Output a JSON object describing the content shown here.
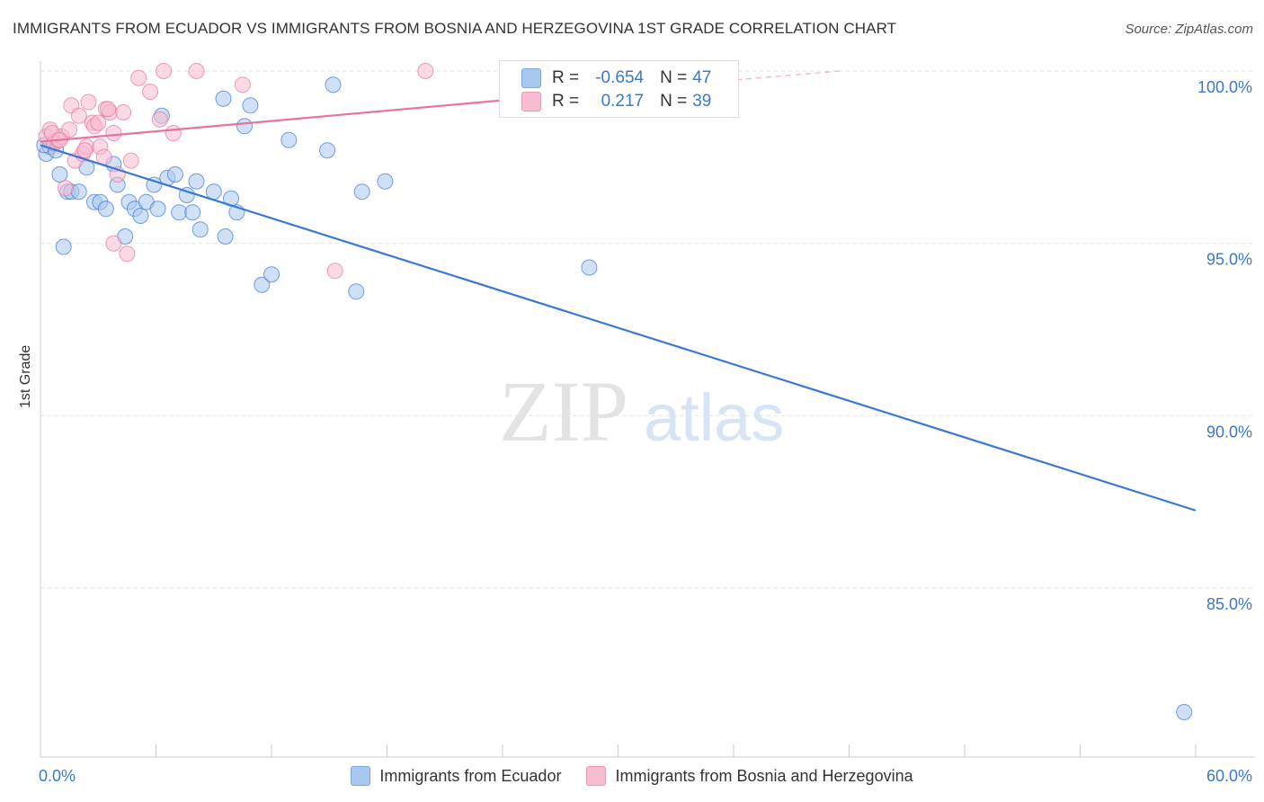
{
  "title": "IMMIGRANTS FROM ECUADOR VS IMMIGRANTS FROM BOSNIA AND HERZEGOVINA 1ST GRADE CORRELATION CHART",
  "source": "Source: ZipAtlas.com",
  "watermark": {
    "zip": "ZIP",
    "atlas": "atlas"
  },
  "stats_box": {
    "rows": [
      {
        "r_label": "R =",
        "r_value": "-0.654",
        "n_label": "N =",
        "n_value": "47",
        "color": "#a9c8f0"
      },
      {
        "r_label": "R =",
        "r_value": "0.217",
        "n_label": "N =",
        "n_value": "39",
        "color": "#f7bcd0"
      }
    ]
  },
  "chart_data": {
    "type": "scatter",
    "title": "IMMIGRANTS FROM ECUADOR VS IMMIGRANTS FROM BOSNIA AND HERZEGOVINA 1ST GRADE CORRELATION CHART",
    "xlabel": "",
    "ylabel": "1st Grade",
    "xlim": [
      0,
      60
    ],
    "ylim": [
      80.5,
      100.7
    ],
    "x_tick_labels": [
      "0.0%",
      "60.0%"
    ],
    "y_ticks": [
      85,
      90,
      95,
      100
    ],
    "y_tick_labels": [
      "85.0%",
      "90.0%",
      "95.0%",
      "100.0%"
    ],
    "grid": true,
    "legend_position": "bottom",
    "series": [
      {
        "name": "Immigrants from Ecuador",
        "color": "#3a78d6",
        "fill": "#a9c8f0",
        "trend": {
          "x": [
            0,
            60
          ],
          "y": [
            97.85,
            87.25
          ]
        },
        "points": [
          [
            0.3,
            97.6
          ],
          [
            0.5,
            97.8
          ],
          [
            1.0,
            97.0
          ],
          [
            1.2,
            94.9
          ],
          [
            1.4,
            96.5
          ],
          [
            1.6,
            96.5
          ],
          [
            2.0,
            96.5
          ],
          [
            2.4,
            97.2
          ],
          [
            2.8,
            96.2
          ],
          [
            3.1,
            96.2
          ],
          [
            3.4,
            96.0
          ],
          [
            3.8,
            97.3
          ],
          [
            4.0,
            96.7
          ],
          [
            4.4,
            95.2
          ],
          [
            4.6,
            96.2
          ],
          [
            4.9,
            96.0
          ],
          [
            5.2,
            95.8
          ],
          [
            5.5,
            96.2
          ],
          [
            5.9,
            96.7
          ],
          [
            6.1,
            96.0
          ],
          [
            6.3,
            98.7
          ],
          [
            6.6,
            96.9
          ],
          [
            7.0,
            97.0
          ],
          [
            7.2,
            95.9
          ],
          [
            7.6,
            96.4
          ],
          [
            7.9,
            95.9
          ],
          [
            8.1,
            96.8
          ],
          [
            8.3,
            95.4
          ],
          [
            9.0,
            96.5
          ],
          [
            9.5,
            99.2
          ],
          [
            9.6,
            95.2
          ],
          [
            9.9,
            96.3
          ],
          [
            10.2,
            95.9
          ],
          [
            10.6,
            98.4
          ],
          [
            10.9,
            99.0
          ],
          [
            11.5,
            93.8
          ],
          [
            12.9,
            98.0
          ],
          [
            12.0,
            94.1
          ],
          [
            14.9,
            97.7
          ],
          [
            15.2,
            99.6
          ],
          [
            16.4,
            93.6
          ],
          [
            16.7,
            96.5
          ],
          [
            17.9,
            96.8
          ],
          [
            28.5,
            94.3
          ],
          [
            59.4,
            81.4
          ],
          [
            0.2,
            97.85
          ],
          [
            0.8,
            97.7
          ]
        ]
      },
      {
        "name": "Immigrants from Bosnia and Herzegovina",
        "color": "#e8739a",
        "fill": "#f7bcd0",
        "trend": {
          "x": [
            0,
            30
          ],
          "y": [
            97.95,
            99.45
          ]
        },
        "trend_extension": {
          "x": [
            30,
            41.5
          ],
          "y": [
            99.45,
            100.0
          ]
        },
        "points": [
          [
            0.3,
            98.1
          ],
          [
            0.5,
            98.3
          ],
          [
            0.7,
            97.9
          ],
          [
            0.9,
            98.0
          ],
          [
            1.1,
            98.1
          ],
          [
            1.3,
            96.6
          ],
          [
            1.5,
            98.3
          ],
          [
            1.6,
            99.0
          ],
          [
            1.8,
            97.4
          ],
          [
            2.0,
            98.7
          ],
          [
            2.2,
            97.6
          ],
          [
            2.4,
            97.8
          ],
          [
            2.5,
            99.1
          ],
          [
            2.7,
            98.5
          ],
          [
            2.8,
            98.4
          ],
          [
            3.0,
            98.5
          ],
          [
            3.1,
            97.8
          ],
          [
            3.3,
            97.5
          ],
          [
            3.4,
            98.9
          ],
          [
            3.6,
            98.8
          ],
          [
            3.8,
            95.0
          ],
          [
            3.8,
            98.2
          ],
          [
            4.0,
            97.0
          ],
          [
            4.3,
            98.8
          ],
          [
            4.5,
            94.7
          ],
          [
            4.7,
            97.4
          ],
          [
            5.1,
            99.8
          ],
          [
            5.7,
            99.4
          ],
          [
            6.2,
            98.6
          ],
          [
            6.4,
            100.0
          ],
          [
            6.9,
            98.2
          ],
          [
            8.1,
            100.0
          ],
          [
            10.5,
            99.6
          ],
          [
            15.3,
            94.2
          ],
          [
            20.0,
            100.0
          ],
          [
            0.6,
            98.2
          ],
          [
            1.0,
            98.0
          ],
          [
            2.3,
            97.7
          ],
          [
            3.5,
            98.9
          ]
        ]
      }
    ]
  }
}
